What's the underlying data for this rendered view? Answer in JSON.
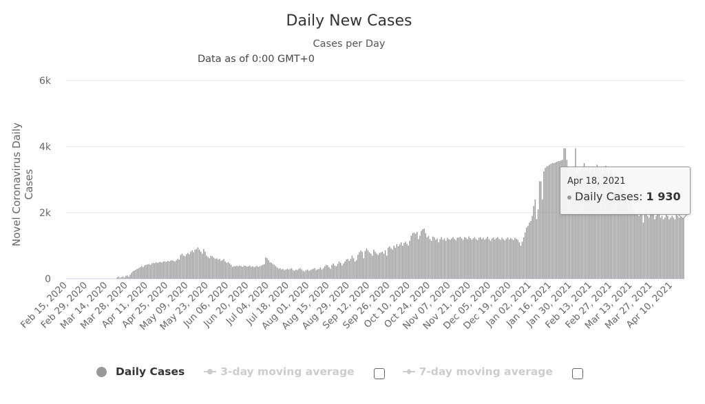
{
  "chart_data": {
    "type": "bar",
    "title": "Daily New Cases",
    "subtitle": "Cases per Day",
    "note": "Data as of 0:00 GMT+0",
    "ylabel": "Novel Coronavirus Daily Cases",
    "xlabel": "",
    "ylim": [
      0,
      6000
    ],
    "y_ticks": [
      "0",
      "2k",
      "4k",
      "6k"
    ],
    "y_tick_values": [
      0,
      2000,
      4000,
      6000
    ],
    "grid": true,
    "x_tick_interval_days": 14,
    "x_ticks": [
      "Feb 15, 2020",
      "Feb 29, 2020",
      "Mar 14, 2020",
      "Mar 28, 2020",
      "Apr 11, 2020",
      "Apr 25, 2020",
      "May 09, 2020",
      "May 23, 2020",
      "Jun 06, 2020",
      "Jun 20, 2020",
      "Jul 04, 2020",
      "Jul 18, 2020",
      "Aug 01, 2020",
      "Aug 15, 2020",
      "Aug 29, 2020",
      "Sep 12, 2020",
      "Sep 26, 2020",
      "Oct 10, 2020",
      "Oct 24, 2020",
      "Nov 07, 2020",
      "Nov 21, 2020",
      "Dec 05, 2020",
      "Dec 19, 2020",
      "Jan 02, 2021",
      "Jan 16, 2021",
      "Jan 30, 2021",
      "Feb 13, 2021",
      "Feb 27, 2021",
      "Mar 13, 2021",
      "Mar 27, 2021",
      "Apr 10, 2021"
    ],
    "x_range": [
      "Feb 15, 2020",
      "Apr 18, 2021"
    ],
    "series": [
      {
        "name": "Daily Cases",
        "color": "#999999",
        "values": [
          0,
          0,
          0,
          0,
          0,
          0,
          0,
          0,
          0,
          0,
          0,
          0,
          0,
          0,
          0,
          0,
          0,
          0,
          0,
          0,
          0,
          0,
          0,
          0,
          0,
          0,
          0,
          0,
          0,
          0,
          0,
          0,
          0,
          0,
          0,
          40,
          60,
          30,
          50,
          70,
          40,
          90,
          100,
          60,
          120,
          180,
          230,
          250,
          280,
          300,
          320,
          350,
          380,
          350,
          400,
          420,
          430,
          450,
          420,
          460,
          480,
          470,
          500,
          480,
          500,
          510,
          490,
          520,
          530,
          510,
          540,
          520,
          550,
          560,
          540,
          520,
          560,
          600,
          580,
          720,
          760,
          700,
          680,
          740,
          780,
          740,
          820,
          860,
          800,
          880,
          900,
          950,
          880,
          820,
          760,
          900,
          820,
          700,
          660,
          620,
          700,
          680,
          640,
          600,
          620,
          580,
          600,
          540,
          560,
          600,
          520,
          480,
          500,
          460,
          420,
          360,
          380,
          380,
          390,
          380,
          400,
          380,
          360,
          400,
          390,
          370,
          380,
          400,
          360,
          380,
          350,
          370,
          390,
          360,
          380,
          400,
          420,
          440,
          650,
          620,
          560,
          500,
          480,
          450,
          420,
          380,
          340,
          300,
          320,
          280,
          300,
          260,
          280,
          300,
          280,
          300,
          320,
          260,
          240,
          280,
          260,
          300,
          320,
          280,
          240,
          220,
          260,
          280,
          240,
          260,
          280,
          300,
          320,
          260,
          280,
          300,
          340,
          280,
          320,
          380,
          420,
          400,
          350,
          300,
          420,
          460,
          400,
          380,
          450,
          520,
          480,
          400,
          460,
          520,
          580,
          600,
          540,
          600,
          700,
          620,
          520,
          560,
          720,
          800,
          860,
          820,
          620,
          840,
          920,
          860,
          800,
          760,
          700,
          880,
          820,
          760,
          720,
          780,
          800,
          820,
          760,
          860,
          700,
          940,
          980,
          920,
          880,
          1000,
          940,
          1050,
          980,
          1040,
          1100,
          1000,
          1080,
          1120,
          1060,
          1000,
          1150,
          1300,
          1380,
          1400,
          1360,
          1420,
          1200,
          1300,
          1450,
          1500,
          1520,
          1380,
          1250,
          1300,
          1200,
          1150,
          1280,
          1250,
          1180,
          1220,
          1100,
          1200,
          1260,
          1180,
          1220,
          1150,
          1240,
          1200,
          1180,
          1220,
          1260,
          1200,
          1160,
          1240,
          1250,
          1270,
          1220,
          1180,
          1260,
          1240,
          1200,
          1280,
          1230,
          1180,
          1220,
          1260,
          1200,
          1170,
          1240,
          1260,
          1200,
          1240,
          1180,
          1220,
          1270,
          1200,
          1150,
          1220,
          1250,
          1190,
          1230,
          1260,
          1200,
          1180,
          1240,
          1200,
          1160,
          1210,
          1250,
          1190,
          1230,
          1200,
          1170,
          1240,
          1210,
          1180,
          1100,
          1000,
          1120,
          1250,
          1400,
          1550,
          1600,
          1700,
          1750,
          1900,
          2200,
          2400,
          1800,
          2100,
          2950,
          2950,
          2400,
          3250,
          3350,
          3400,
          3420,
          3450,
          3480,
          3500,
          3500,
          3520,
          3540,
          3560,
          3560,
          3580,
          3600,
          3950,
          3950,
          3600,
          3400,
          3300,
          3350,
          3300,
          3400,
          3950,
          3200,
          3300,
          3250,
          3300,
          3350,
          3500,
          3300,
          3250,
          3400,
          3200,
          3300,
          3400,
          3200,
          3350,
          3450,
          3300,
          3250,
          3350,
          3200,
          3300,
          3420,
          3250,
          3150,
          3300,
          3250,
          3100,
          3000,
          3150,
          3050,
          2900,
          2950,
          2800,
          2700,
          2600,
          2500,
          2400,
          2350,
          2300,
          2200,
          2100,
          2050,
          1950,
          2000,
          1900,
          2050,
          1950,
          1700,
          2000,
          2100,
          1900,
          1850,
          2000,
          2050,
          1950,
          1800,
          1900,
          2000,
          1950,
          1850,
          1900,
          1800,
          1850,
          1950,
          1900,
          1800,
          1850,
          1900,
          1850,
          1800,
          1950,
          1900,
          1850,
          1950,
          2000,
          1930
        ]
      }
    ],
    "legend": {
      "placement": "bottom",
      "items": [
        {
          "label": "Daily Cases",
          "active": true
        },
        {
          "label": "3-day moving average",
          "active": false,
          "checked": false
        },
        {
          "label": "7-day moving average",
          "active": false,
          "checked": false
        }
      ]
    },
    "tooltip": {
      "date": "Apr 18, 2021",
      "series": "Daily Cases:",
      "value": "1 930"
    }
  }
}
